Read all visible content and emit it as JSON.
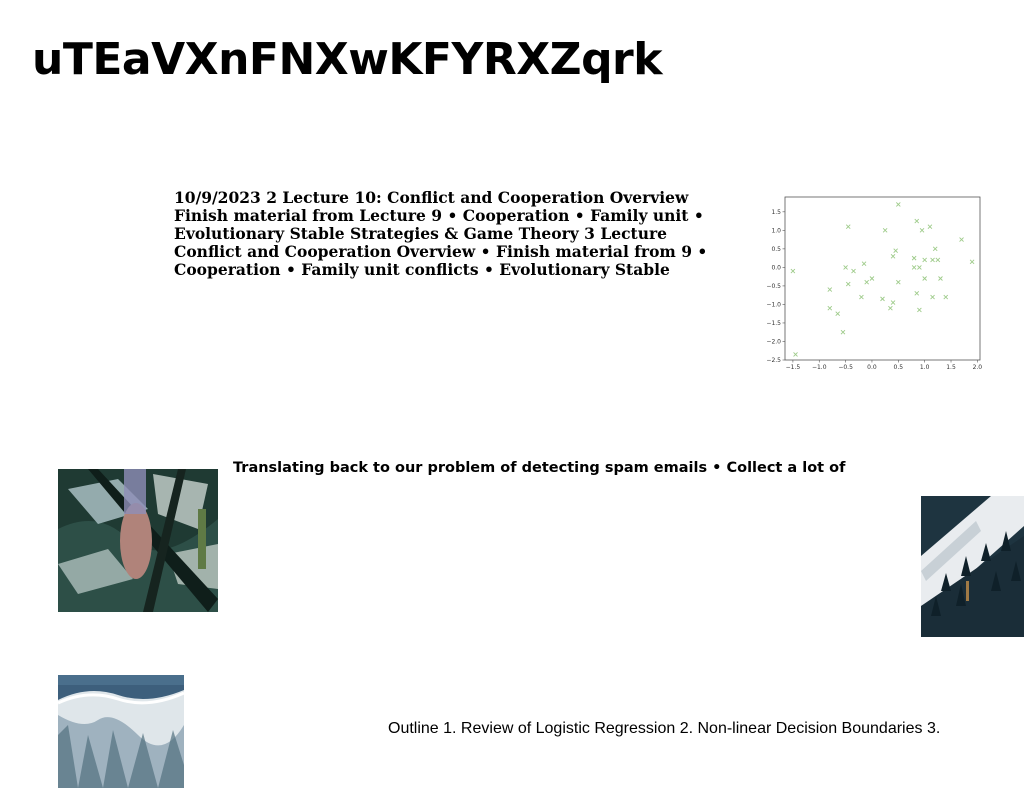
{
  "header": {
    "title": "uTEaVXnFNXwKFYRXZqrk"
  },
  "lecture_block": {
    "text": "10/9/2023 2 Lecture 10: Conflict and Cooperation Overview Finish material from Lecture 9 • Cooperation • Family unit • Evolutionary Stable Strategies & Game Theory 3 Lecture Conflict and Cooperation Overview • Finish material from 9 • Cooperation • Family unit conflicts • Evolutionary Stable"
  },
  "spam_block": {
    "text": "Translating back to our problem of detecting spam emails • Collect a lot of"
  },
  "outline_block": {
    "text": "Outline 1. Review of Logistic Regression 2. Non-linear Decision Boundaries 3."
  },
  "colors": {
    "marker": "#9ecb8a",
    "axis": "#555555"
  },
  "chart_data": {
    "type": "scatter",
    "marker": "x",
    "xlim": [
      -1.65,
      2.05
    ],
    "ylim": [
      -2.5,
      1.9
    ],
    "xticks": [
      -1.5,
      -1.0,
      -0.5,
      0.0,
      0.5,
      1.0,
      1.5,
      2.0
    ],
    "yticks": [
      -2.5,
      -2.0,
      -1.5,
      -1.0,
      -0.5,
      0.0,
      0.5,
      1.0,
      1.5
    ],
    "xtick_labels": [
      "−1.5",
      "−1.0",
      "−0.5",
      "0.0",
      "0.5",
      "1.0",
      "1.5",
      "2.0"
    ],
    "ytick_labels": [
      "−2.5",
      "−2.0",
      "−1.5",
      "−1.0",
      "−0.5",
      "0.0",
      "0.5",
      "1.0",
      "1.5"
    ],
    "grid": false,
    "series": [
      {
        "x": [
          -1.5,
          -1.45,
          -0.8,
          -0.8,
          -0.65,
          -0.55,
          -0.5,
          -0.45,
          -0.45,
          -0.35,
          -0.2,
          -0.15,
          -0.1,
          0.0,
          0.2,
          0.25,
          0.35,
          0.4,
          0.4,
          0.45,
          0.5,
          0.5,
          0.8,
          0.8,
          0.85,
          0.85,
          0.9,
          0.9,
          0.95,
          1.0,
          1.0,
          1.1,
          1.15,
          1.15,
          1.2,
          1.25,
          1.3,
          1.4,
          1.7,
          1.9
        ],
        "y": [
          -0.1,
          -2.35,
          -0.6,
          -1.1,
          -1.25,
          -1.75,
          0.0,
          1.1,
          -0.45,
          -0.1,
          -0.8,
          0.1,
          -0.4,
          -0.3,
          -0.85,
          1.0,
          -1.1,
          -0.95,
          0.3,
          0.45,
          1.7,
          -0.4,
          0.25,
          0.0,
          -0.7,
          1.25,
          0.0,
          -1.15,
          1.0,
          -0.3,
          0.2,
          1.1,
          0.2,
          -0.8,
          0.5,
          0.2,
          -0.3,
          -0.8,
          0.75,
          0.15
        ]
      }
    ]
  }
}
